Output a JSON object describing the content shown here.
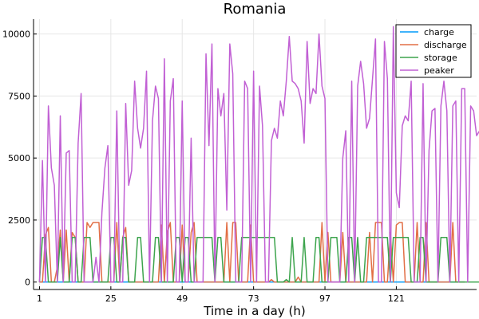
{
  "chart_data": {
    "type": "line",
    "title": "Romania",
    "xlabel": "Time in a day (h)",
    "ylabel": "",
    "xlim": [
      -1,
      148
    ],
    "ylim": [
      -300,
      10600
    ],
    "x_ticks": [
      1,
      25,
      49,
      73,
      97,
      121
    ],
    "y_ticks": [
      0,
      2500,
      5000,
      7500,
      10000
    ],
    "y_tick_labels": [
      "0",
      "2500",
      "5000",
      "7500",
      "10000"
    ],
    "grid": true,
    "legend_position": "top-right",
    "x_start": 1,
    "series": [
      {
        "name": "charge",
        "color": "#009AFA",
        "values": [
          0,
          0,
          0,
          0,
          0,
          0,
          0,
          0,
          0,
          0,
          0,
          0,
          0,
          0,
          0,
          0,
          0,
          0,
          0,
          0,
          0,
          0,
          0,
          0,
          0,
          0,
          0,
          0,
          0,
          0,
          0,
          0,
          0,
          0,
          0,
          0,
          0,
          0,
          0,
          0,
          0,
          0,
          0,
          0,
          0,
          0,
          0,
          0,
          0,
          0,
          0,
          0,
          0,
          0,
          0,
          0,
          0,
          0,
          0,
          0,
          0,
          0,
          0,
          0,
          0,
          0,
          0,
          0,
          0,
          0,
          0,
          0,
          0,
          0,
          0,
          0,
          0,
          0,
          0,
          0,
          0,
          0,
          0,
          0,
          0,
          0,
          0,
          0,
          0,
          0,
          0,
          0,
          0,
          0,
          0,
          0,
          0,
          0,
          0,
          0,
          0,
          0,
          0,
          0,
          0,
          0,
          0,
          0,
          0,
          0,
          0,
          0,
          0,
          0,
          0,
          0,
          0,
          0,
          0,
          0,
          0,
          0,
          0,
          0,
          0,
          0,
          0,
          0,
          0,
          0,
          0,
          0,
          0,
          0,
          0,
          0,
          0,
          0,
          0,
          0,
          0,
          0,
          0,
          0
        ]
      },
      {
        "name": "discharge",
        "color": "#E26F46",
        "values": [
          0,
          0,
          1900,
          2200,
          0,
          0,
          600,
          2100,
          0,
          2100,
          0,
          2000,
          1800,
          0,
          0,
          0,
          2400,
          2200,
          2400,
          2400,
          2400,
          0,
          0,
          0,
          0,
          0,
          2400,
          0,
          1800,
          2200,
          0,
          0,
          0,
          0,
          0,
          0,
          0,
          0,
          0,
          0,
          0,
          2300,
          0,
          2000,
          2400,
          0,
          0,
          0,
          2300,
          0,
          0,
          2000,
          2400,
          0,
          0,
          0,
          0,
          0,
          0,
          0,
          0,
          0,
          0,
          2400,
          0,
          2400,
          2400,
          0,
          0,
          0,
          0,
          2300,
          0,
          0,
          0,
          0,
          0,
          0,
          100,
          0,
          0,
          0,
          0,
          0,
          0,
          0,
          0,
          200,
          0,
          0,
          0,
          0,
          0,
          0,
          0,
          2400,
          0,
          2000,
          0,
          0,
          0,
          0,
          2000,
          0,
          0,
          0,
          0,
          0,
          0,
          0,
          0,
          2000,
          0,
          2400,
          2400,
          2400,
          0,
          0,
          2000,
          0,
          2300,
          2400,
          2400,
          0,
          0,
          0,
          0,
          2400,
          0,
          0,
          2400,
          0,
          0,
          0,
          0,
          0,
          0,
          0,
          0,
          2400,
          0,
          0,
          0,
          0
        ]
      },
      {
        "name": "storage",
        "color": "#3DA44D",
        "values": [
          0,
          1800,
          1800,
          0,
          0,
          0,
          0,
          1800,
          0,
          0,
          0,
          1800,
          1800,
          0,
          0,
          1800,
          1800,
          1800,
          0,
          0,
          0,
          0,
          0,
          0,
          1800,
          1800,
          0,
          0,
          1800,
          1800,
          0,
          0,
          0,
          1800,
          1800,
          0,
          0,
          0,
          0,
          1800,
          1800,
          0,
          0,
          0,
          0,
          0,
          1800,
          1800,
          0,
          1800,
          1800,
          0,
          0,
          1800,
          1800,
          1800,
          1800,
          1800,
          1800,
          0,
          1800,
          1800,
          0,
          0,
          0,
          0,
          0,
          0,
          1800,
          1800,
          1800,
          1800,
          1800,
          1800,
          1800,
          1800,
          1800,
          1800,
          1800,
          1800,
          0,
          0,
          0,
          100,
          0,
          1800,
          0,
          0,
          0,
          1800,
          0,
          0,
          0,
          1800,
          1800,
          0,
          0,
          0,
          1800,
          1800,
          1800,
          0,
          0,
          0,
          1800,
          1800,
          0,
          1800,
          0,
          0,
          1800,
          1800,
          1800,
          1800,
          1800,
          1800,
          1800,
          1800,
          0,
          1800,
          1800,
          1800,
          1800,
          1800,
          1800,
          0,
          0,
          0,
          1800,
          1800,
          0,
          0,
          0,
          0,
          0,
          1800,
          1800,
          1800,
          0,
          0,
          0,
          0,
          0,
          0,
          0,
          0,
          0,
          0,
          0
        ]
      },
      {
        "name": "peaker",
        "color": "#C160D4",
        "values": [
          0,
          4900,
          0,
          7100,
          4600,
          3900,
          0,
          6700,
          0,
          5200,
          5300,
          0,
          0,
          5600,
          7600,
          0,
          0,
          0,
          0,
          1000,
          0,
          2800,
          4600,
          5500,
          0,
          0,
          6900,
          0,
          0,
          7200,
          3900,
          4500,
          8100,
          6200,
          5400,
          6200,
          8500,
          0,
          6500,
          7900,
          7400,
          0,
          9000,
          0,
          7300,
          8200,
          0,
          0,
          7300,
          0,
          0,
          5800,
          0,
          0,
          0,
          0,
          9200,
          5500,
          9600,
          0,
          7800,
          6700,
          7600,
          2900,
          9600,
          8400,
          0,
          0,
          0,
          8100,
          7800,
          0,
          8500,
          0,
          7900,
          6300,
          0,
          0,
          5700,
          6200,
          5800,
          7300,
          6700,
          8100,
          9900,
          8100,
          8000,
          7800,
          7300,
          5600,
          9700,
          7200,
          7800,
          7600,
          10000,
          7900,
          7400,
          0,
          0,
          0,
          0,
          0,
          5000,
          6100,
          0,
          8100,
          0,
          7900,
          8900,
          8000,
          6200,
          6600,
          8200,
          9800,
          0,
          0,
          9700,
          8200,
          0,
          10300,
          3600,
          3000,
          6300,
          6700,
          6500,
          8100,
          0,
          0,
          0,
          8000,
          0,
          5300,
          6900,
          7000,
          0,
          7100,
          8100,
          6900,
          0,
          7100,
          7300,
          0,
          7800,
          7800,
          0,
          7100,
          6900,
          5900,
          6100
        ]
      }
    ]
  }
}
